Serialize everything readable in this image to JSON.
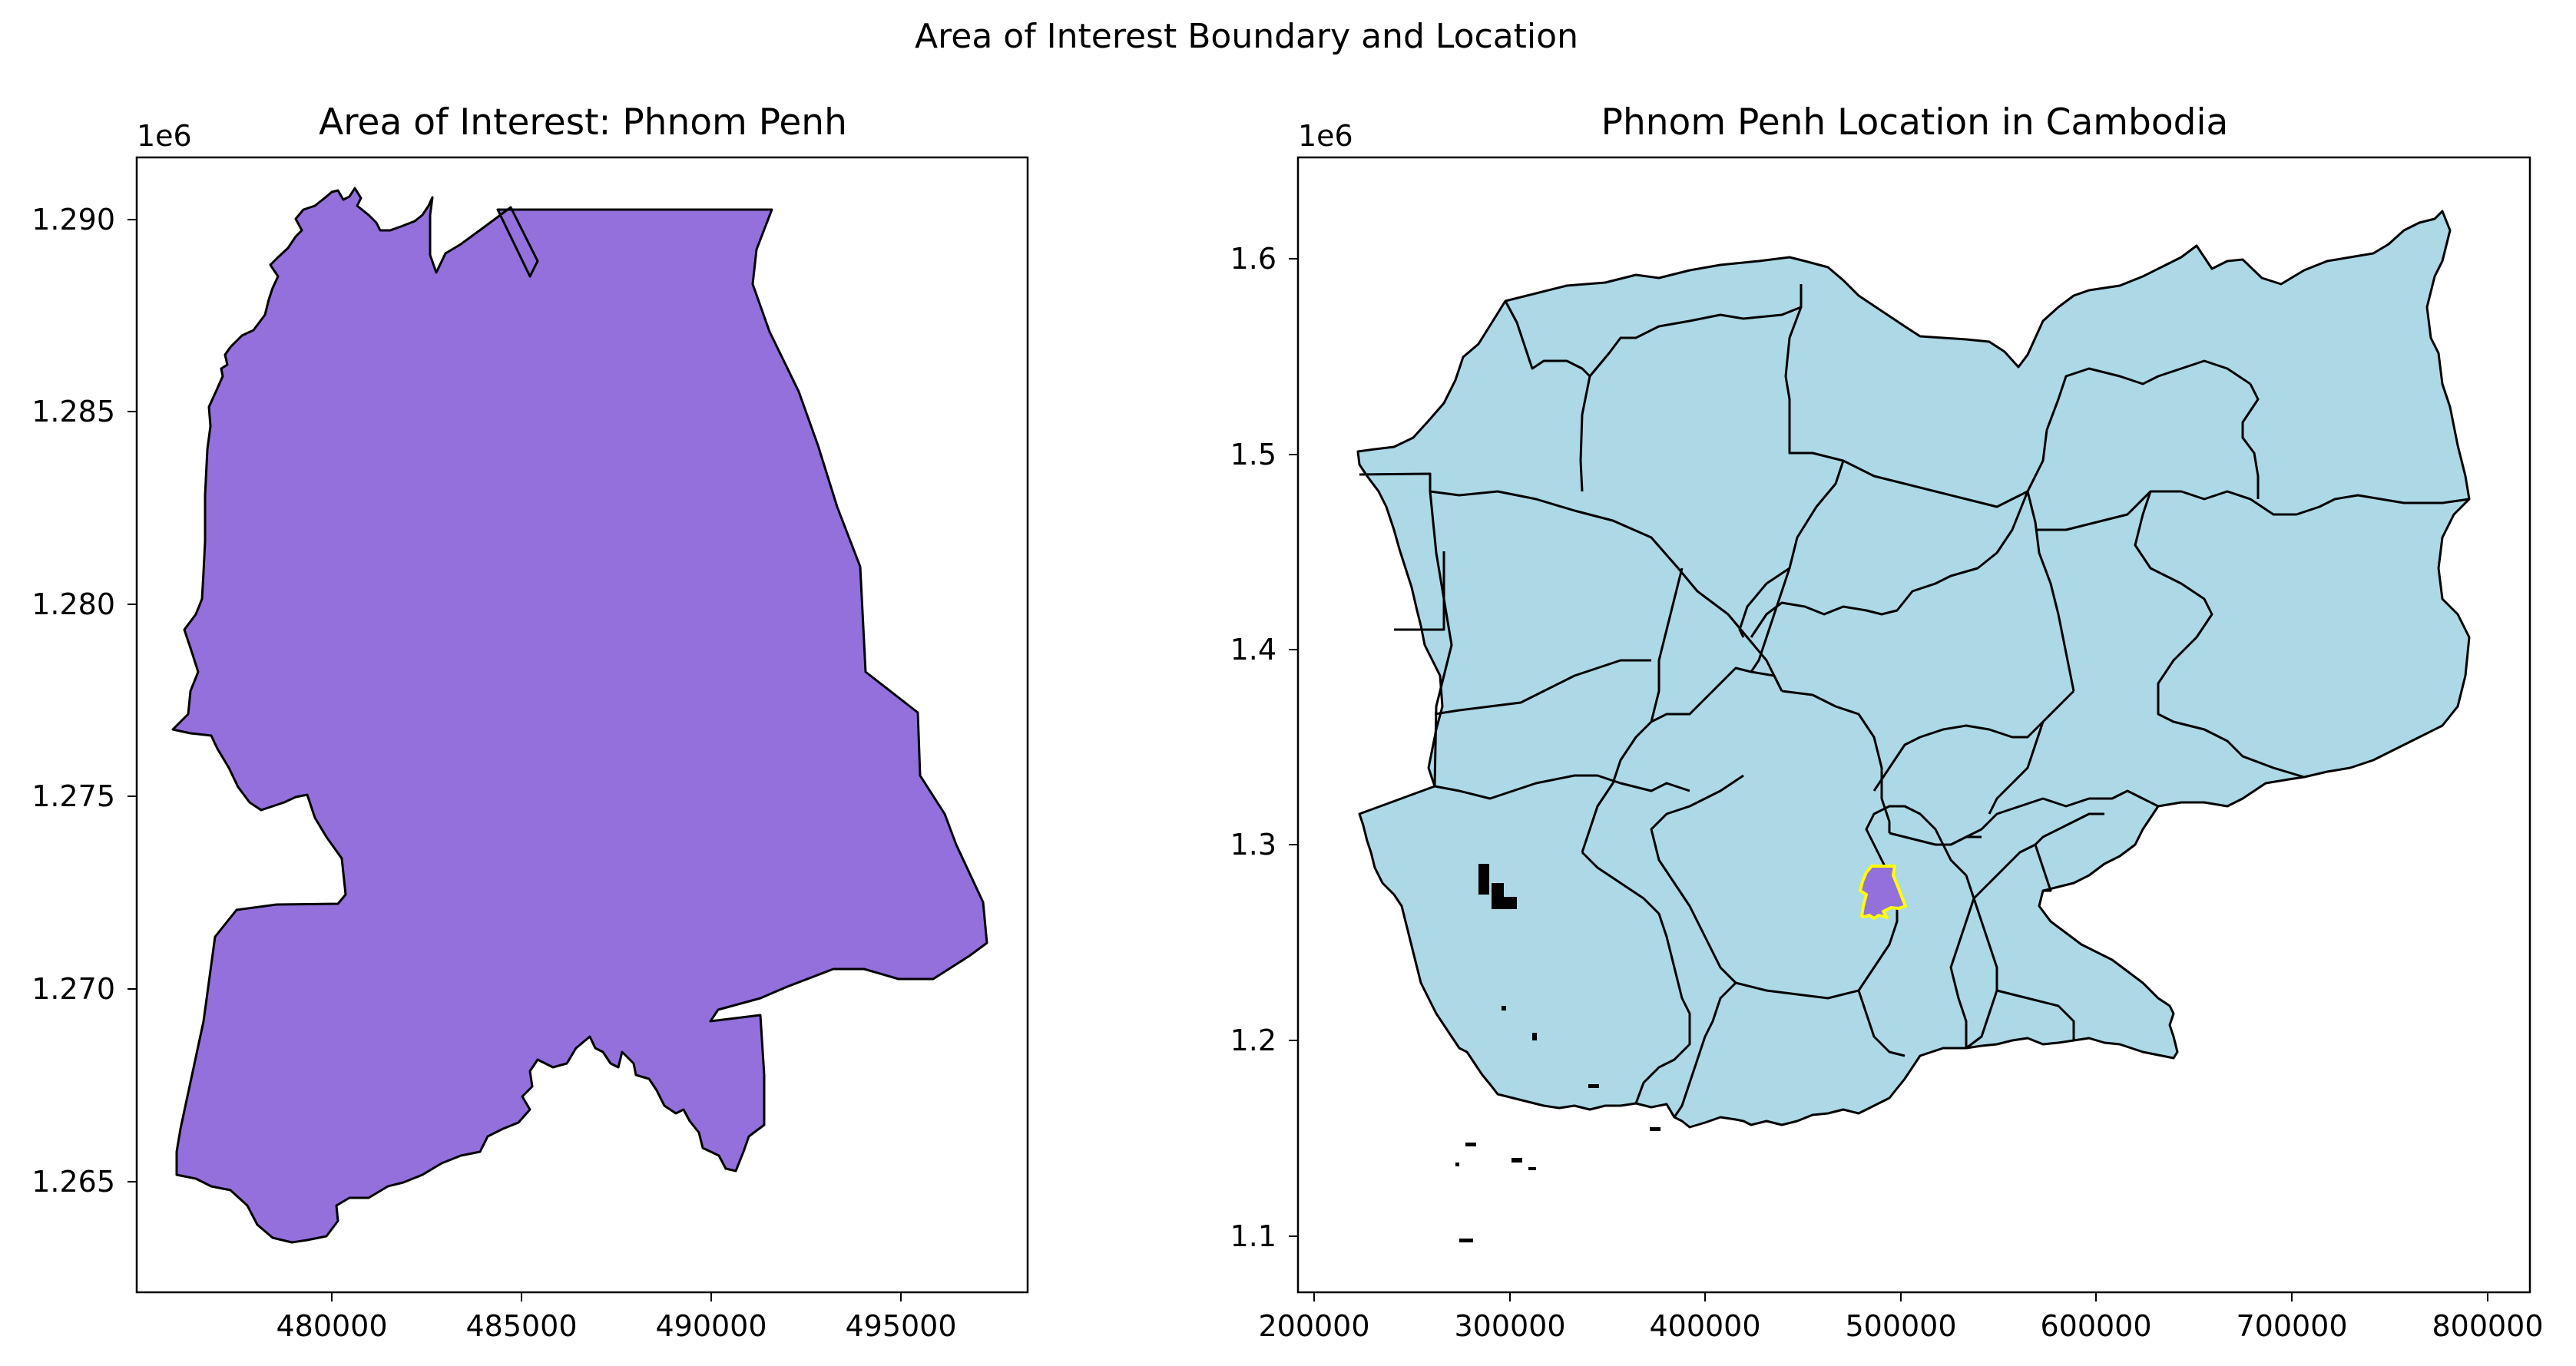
{
  "figure": {
    "suptitle": "Area of Interest Boundary and Location"
  },
  "left_panel": {
    "title": "Area of Interest: Phnom Penh",
    "y_offset_label": "1e6",
    "x_ticks": [
      "480000",
      "485000",
      "490000",
      "495000"
    ],
    "y_ticks": [
      "1.265",
      "1.270",
      "1.275",
      "1.280",
      "1.285",
      "1.290"
    ],
    "fill_color": "#9370DB",
    "edge_color": "#000000"
  },
  "right_panel": {
    "title": "Phnom Penh Location in Cambodia",
    "y_offset_label": "1e6",
    "x_ticks": [
      "200000",
      "300000",
      "400000",
      "500000",
      "600000",
      "700000",
      "800000"
    ],
    "y_ticks": [
      "1.1",
      "1.2",
      "1.3",
      "1.4",
      "1.5",
      "1.6"
    ],
    "country_fill": "#ADD8E6",
    "edge_color": "#000000",
    "highlight_fill": "#9370DB",
    "highlight_edge": "#FFFF00"
  },
  "chart_data": [
    {
      "type": "map",
      "title": "Area of Interest: Phnom Penh",
      "xlim": [
        475000,
        498500
      ],
      "ylim": [
        1262000,
        1291600
      ],
      "y_scale_factor": "1e6",
      "features": [
        {
          "name": "Phnom Penh",
          "fill": "#9370DB"
        }
      ]
    },
    {
      "type": "map",
      "title": "Phnom Penh Location in Cambodia",
      "xlim": [
        185000,
        815000
      ],
      "ylim": [
        1070000,
        1650000
      ],
      "y_scale_factor": "1e6",
      "features": [
        {
          "name": "Cambodia provinces",
          "fill": "#ADD8E6"
        },
        {
          "name": "Phnom Penh",
          "fill": "#9370DB",
          "edge": "#FFFF00"
        }
      ]
    }
  ]
}
